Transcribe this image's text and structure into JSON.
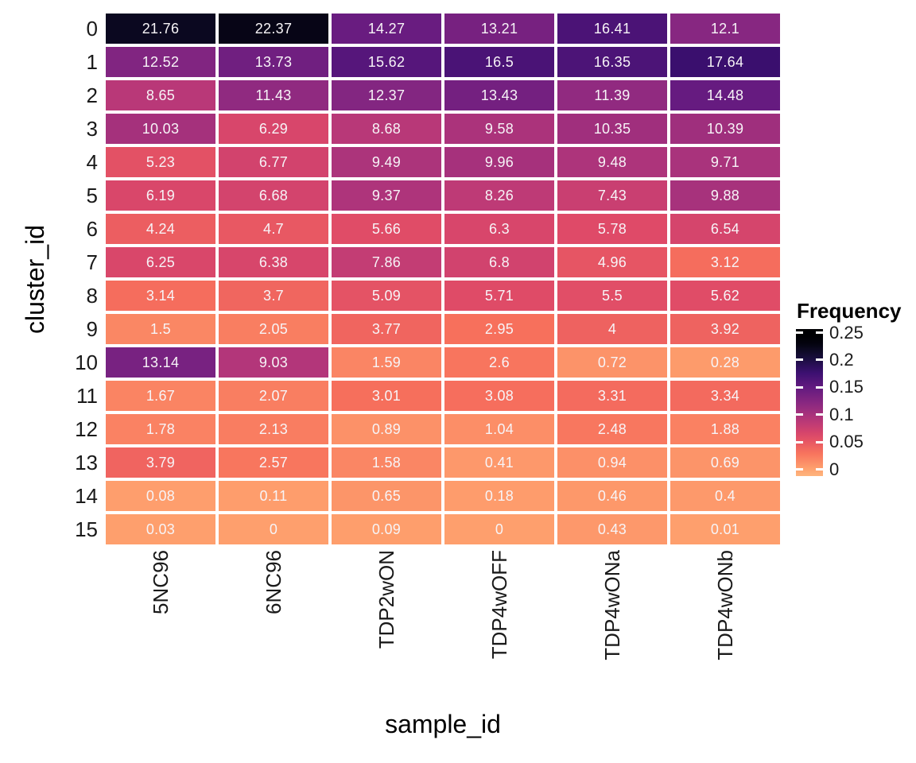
{
  "chart_data": {
    "type": "heatmap",
    "xlabel": "sample_id",
    "ylabel": "cluster_id",
    "x_categories": [
      "5NC96",
      "6NC96",
      "TDP2wON",
      "TDP4wOFF",
      "TDP4wONa",
      "TDP4wONb"
    ],
    "y_categories": [
      "0",
      "1",
      "2",
      "3",
      "4",
      "5",
      "6",
      "7",
      "8",
      "9",
      "10",
      "11",
      "12",
      "13",
      "14",
      "15"
    ],
    "values": [
      [
        "21.76",
        "22.37",
        "14.27",
        "13.21",
        "16.41",
        "12.1"
      ],
      [
        "12.52",
        "13.73",
        "15.62",
        "16.5",
        "16.35",
        "17.64"
      ],
      [
        "8.65",
        "11.43",
        "12.37",
        "13.43",
        "11.39",
        "14.48"
      ],
      [
        "10.03",
        "6.29",
        "8.68",
        "9.58",
        "10.35",
        "10.39"
      ],
      [
        "5.23",
        "6.77",
        "9.49",
        "9.96",
        "9.48",
        "9.71"
      ],
      [
        "6.19",
        "6.68",
        "9.37",
        "8.26",
        "7.43",
        "9.88"
      ],
      [
        "4.24",
        "4.7",
        "5.66",
        "6.3",
        "5.78",
        "6.54"
      ],
      [
        "6.25",
        "6.38",
        "7.86",
        "6.8",
        "4.96",
        "3.12"
      ],
      [
        "3.14",
        "3.7",
        "5.09",
        "5.71",
        "5.5",
        "5.62"
      ],
      [
        "1.5",
        "2.05",
        "3.77",
        "2.95",
        "4",
        "3.92"
      ],
      [
        "13.14",
        "9.03",
        "1.59",
        "2.6",
        "0.72",
        "0.28"
      ],
      [
        "1.67",
        "2.07",
        "3.01",
        "3.08",
        "3.31",
        "3.34"
      ],
      [
        "1.78",
        "2.13",
        "0.89",
        "1.04",
        "2.48",
        "1.88"
      ],
      [
        "3.79",
        "2.57",
        "1.58",
        "0.41",
        "0.94",
        "0.69"
      ],
      [
        "0.08",
        "0.11",
        "0.65",
        "0.18",
        "0.46",
        "0.4"
      ],
      [
        "0.03",
        "0",
        "0.09",
        "0",
        "0.43",
        "0.01"
      ]
    ],
    "values_are": "percent_frequency",
    "legend": {
      "title": "Frequency",
      "tick_labels": [
        "0.25",
        "0.2",
        "0.15",
        "0.1",
        "0.05",
        "0"
      ],
      "tick_values": [
        0.25,
        0.2,
        0.15,
        0.1,
        0.05,
        0
      ],
      "position": "right"
    },
    "colorscale": {
      "name": "magma-reversed",
      "domain": [
        0,
        0.25
      ],
      "low_color": "#fe9f6d",
      "mid_color": "#b73779",
      "high_color": "#000004"
    },
    "layout": {
      "grid": "off",
      "cell_gap_color": "#ffffff",
      "cell_text_color": "#ffffff"
    }
  }
}
